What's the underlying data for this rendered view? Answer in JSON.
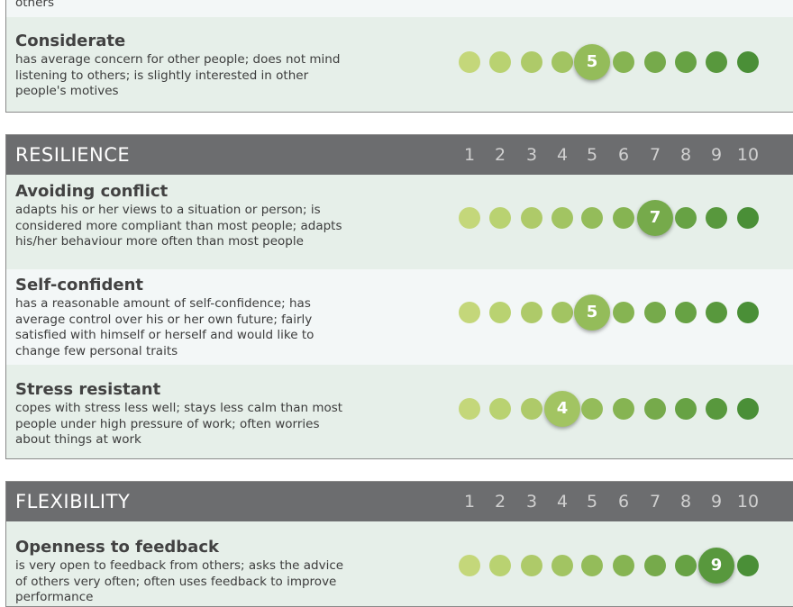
{
  "colors": {
    "header_bg": "#6c6d6f",
    "scale_dots": [
      "#c4d77a",
      "#b9d271",
      "#aeca69",
      "#a2c462",
      "#94bc5a",
      "#86b452",
      "#76aa4b",
      "#67a244",
      "#58983d",
      "#4a8f37"
    ]
  },
  "scale_numbers": [
    "1",
    "2",
    "3",
    "4",
    "5",
    "6",
    "7",
    "8",
    "9",
    "10"
  ],
  "top_fragment": {
    "text": "others"
  },
  "sections": [
    {
      "title": "",
      "traits": [
        {
          "name": "Considerate",
          "description": "has average concern for other people; does not mind listening to others; is slightly interested in other people's motives",
          "score": 5
        }
      ]
    },
    {
      "title": "RESILIENCE",
      "traits": [
        {
          "name": "Avoiding conflict",
          "description": "adapts his or her views to a situation or person; is considered more compliant than most people; adapts his/her behaviour more often than most people",
          "score": 7
        },
        {
          "name": "Self-confident",
          "description": "has a reasonable amount of self-confidence; has average control over his or her own future; fairly satisfied with himself or herself and would like to change few personal traits",
          "score": 5
        },
        {
          "name": "Stress resistant",
          "description": "copes with stress less well; stays less calm than most people under high pressure of work; often worries about things at work",
          "score": 4
        }
      ]
    },
    {
      "title": "FLEXIBILITY",
      "traits": [
        {
          "name": "Openness to feedback",
          "description": "is very open to feedback from others; asks the advice of others very often; often uses feedback to improve performance",
          "score": 9
        }
      ]
    }
  ]
}
